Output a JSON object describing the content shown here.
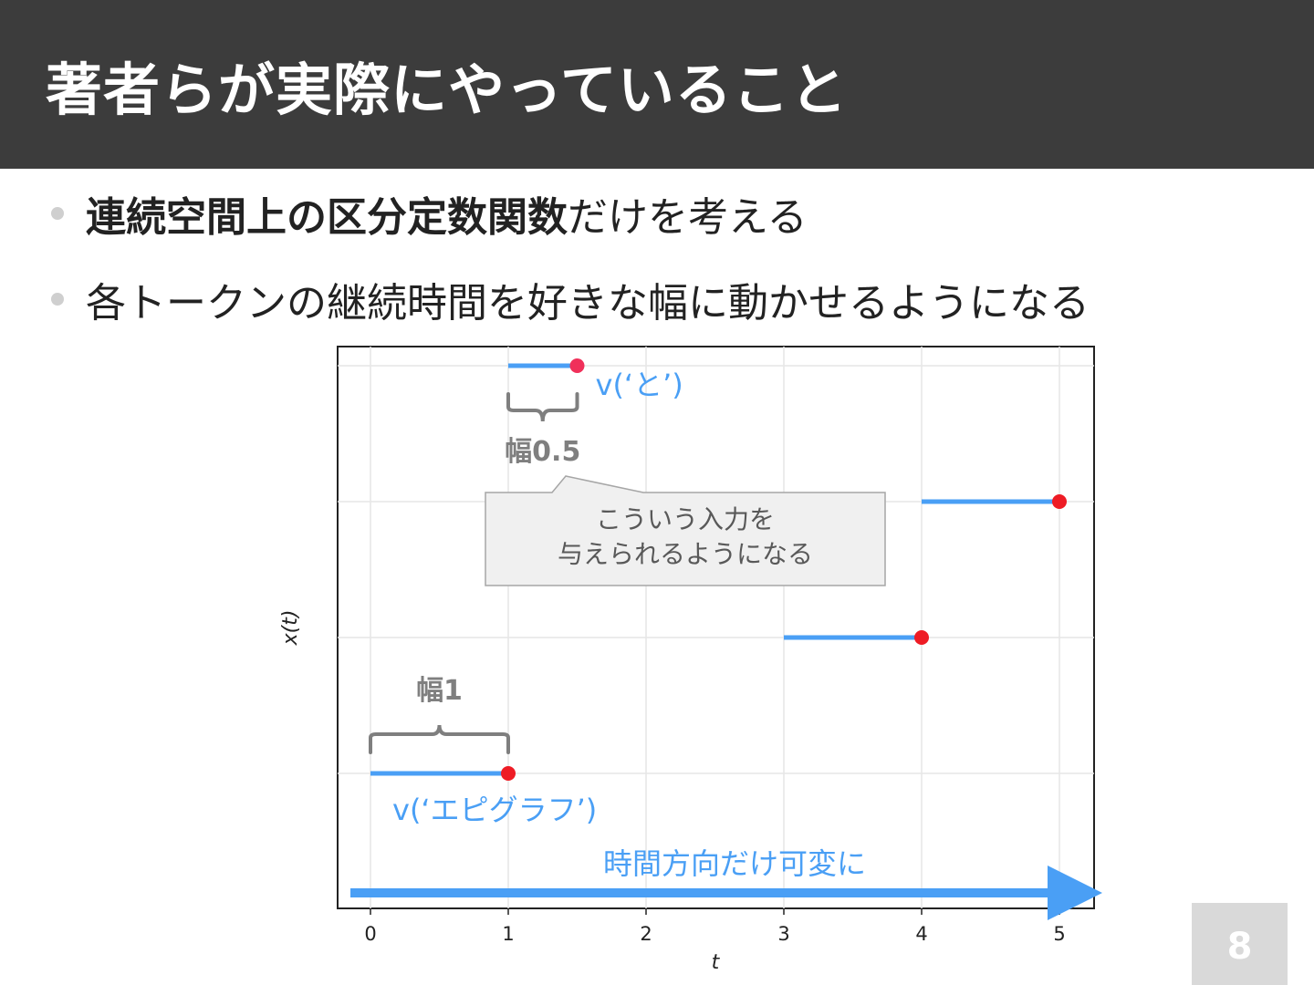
{
  "slide": {
    "title": "著者らが実際にやっていること",
    "page_number": "8"
  },
  "bullets": [
    {
      "bold": "連続空間上の区分定数関数",
      "rest": "だけを考える"
    },
    {
      "bold": "",
      "rest": "各トークンの継続時間を好きな幅に動かせるようになる"
    }
  ],
  "chart_data": {
    "type": "line",
    "xlabel": "t",
    "ylabel": "x(t)",
    "xlim": [
      -0.25,
      5.25
    ],
    "x_ticks": [
      "0",
      "1",
      "2",
      "3",
      "4",
      "5"
    ],
    "grid": true,
    "segments": [
      {
        "start": 0,
        "end": 1,
        "level": 1
      },
      {
        "start": 1,
        "end": 1.5,
        "level": 4
      },
      {
        "start": 3,
        "end": 4,
        "level": 2
      },
      {
        "start": 4,
        "end": 5,
        "level": 3
      }
    ],
    "colors": {
      "segment": "#4a9ff5",
      "endpoint": "#ee1c25",
      "endpoint_top": "#f0305a",
      "annotation": "#7f7f7f",
      "callout_bg": "#f0f0f0"
    },
    "annotations": {
      "label_to": "v(‘と’)",
      "label_epigraph": "v(‘エピグラフ’)",
      "width_half": "幅0.5",
      "width_one": "幅1",
      "callout_line1": "こういう入力を",
      "callout_line2": "与えられるようになる",
      "arrow_label": "時間方向だけ可変に"
    }
  }
}
